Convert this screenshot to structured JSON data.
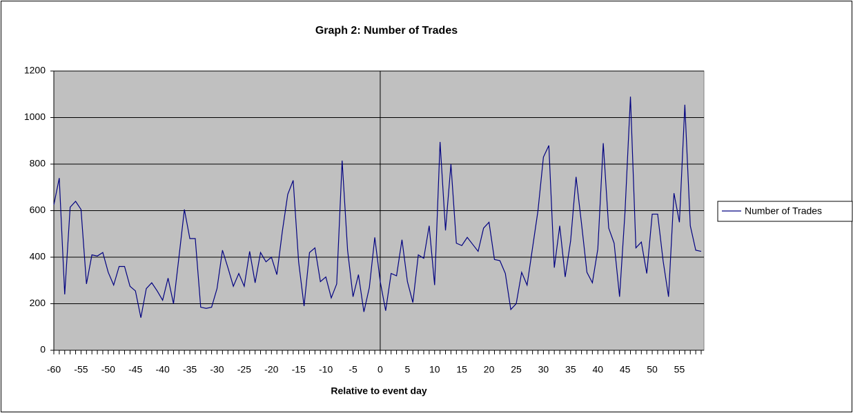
{
  "chart_data": {
    "type": "line",
    "title": "Graph 2: Number of Trades",
    "x_label": "Relative to event day",
    "categories": [
      -60,
      null,
      null,
      null,
      null,
      -55,
      null,
      null,
      null,
      null,
      -50,
      null,
      null,
      null,
      null,
      -45,
      null,
      null,
      null,
      null,
      -40,
      null,
      null,
      null,
      null,
      -35,
      null,
      null,
      null,
      null,
      -30,
      null,
      null,
      null,
      null,
      -25,
      null,
      null,
      null,
      null,
      -20,
      null,
      null,
      null,
      null,
      -15,
      null,
      null,
      null,
      null,
      -10,
      null,
      null,
      null,
      null,
      -5,
      null,
      null,
      null,
      null,
      0,
      null,
      null,
      null,
      null,
      5,
      null,
      null,
      null,
      null,
      10,
      null,
      null,
      null,
      null,
      15,
      null,
      null,
      null,
      null,
      20,
      null,
      null,
      null,
      null,
      25,
      null,
      null,
      null,
      null,
      30,
      null,
      null,
      null,
      null,
      35,
      null,
      null,
      null,
      null,
      40,
      null,
      null,
      null,
      null,
      45,
      null,
      null,
      null,
      null,
      50,
      null,
      null,
      null,
      null,
      55,
      null,
      null,
      null,
      null
    ],
    "series": [
      {
        "name": "Number of Trades",
        "color": "#000080",
        "values": [
          625,
          740,
          240,
          615,
          640,
          605,
          285,
          410,
          405,
          420,
          335,
          280,
          360,
          360,
          275,
          255,
          140,
          265,
          290,
          255,
          215,
          310,
          200,
          400,
          605,
          480,
          480,
          185,
          180,
          185,
          265,
          430,
          355,
          275,
          330,
          275,
          425,
          290,
          420,
          380,
          400,
          325,
          510,
          670,
          730,
          380,
          190,
          420,
          440,
          295,
          315,
          225,
          285,
          815,
          430,
          230,
          325,
          165,
          270,
          485,
          295,
          170,
          330,
          320,
          475,
          295,
          205,
          410,
          395,
          535,
          280,
          895,
          515,
          800,
          460,
          450,
          485,
          455,
          425,
          525,
          550,
          390,
          385,
          330,
          175,
          200,
          335,
          280,
          440,
          600,
          830,
          880,
          355,
          535,
          315,
          470,
          745,
          545,
          335,
          290,
          435,
          890,
          525,
          460,
          230,
          595,
          1090,
          440,
          465,
          330,
          585,
          585,
          385,
          230,
          675,
          550,
          1055,
          535,
          430,
          425
        ]
      }
    ],
    "ylim": [
      0,
      1200
    ],
    "yticks": [
      0,
      200,
      400,
      600,
      800,
      1000,
      1200
    ],
    "grid": true,
    "legend": "right"
  }
}
